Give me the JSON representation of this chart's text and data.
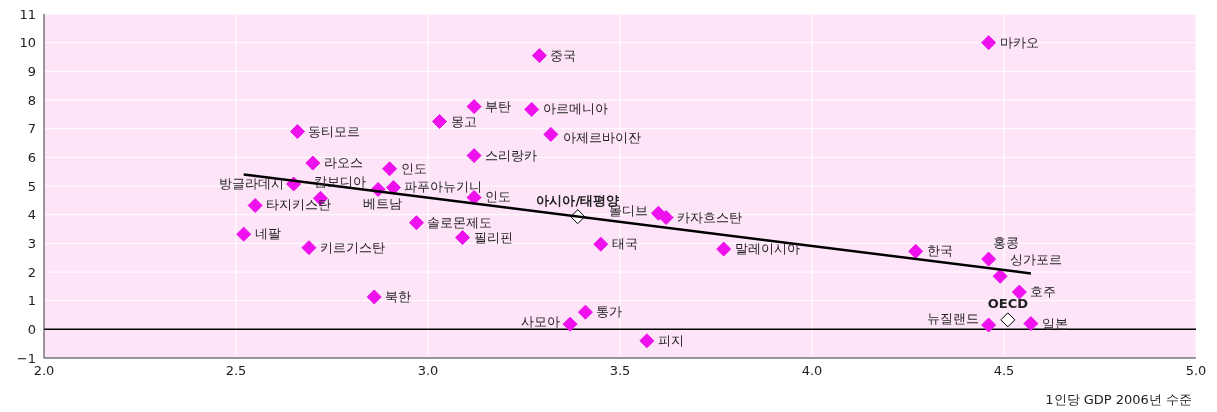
{
  "chart_data": {
    "type": "scatter",
    "xlabel": "1인당 GDP 2006년 수준",
    "marker": "diamond",
    "grid": true,
    "legend": false,
    "xlim": [
      2,
      5
    ],
    "xticks": [
      {
        "value": 2,
        "label": "2.0"
      },
      {
        "value": 2.5,
        "label": "2.5"
      },
      {
        "value": 3,
        "label": "3.0"
      },
      {
        "value": 3.5,
        "label": "3.5"
      },
      {
        "value": 4,
        "label": "4.0"
      },
      {
        "value": 4.5,
        "label": "4.5"
      },
      {
        "value": 5,
        "label": "5.0"
      }
    ],
    "ylim": [
      -1,
      11
    ],
    "yticks": [
      {
        "value": -1,
        "label": "−1"
      },
      0,
      1,
      2,
      3,
      4,
      5,
      6,
      7,
      8,
      9,
      10,
      11
    ],
    "ref_lines": [
      {
        "axis": "y",
        "value": 0,
        "color": "#000000"
      }
    ],
    "series": [
      {
        "color": "#ee11ee",
        "x": [
          3.29,
          4.46,
          3.12,
          3.27,
          3.03,
          3.32,
          2.66,
          3.12,
          2.7,
          2.9,
          2.65,
          2.72,
          2.55,
          2.87,
          2.91,
          3.12,
          2.97,
          2.52,
          3.09,
          2.69,
          3.45,
          3.6,
          3.62,
          3.77,
          4.27,
          4.46,
          4.49,
          4.54,
          4.46,
          4.57,
          2.86,
          3.41,
          3.37,
          3.57
        ],
        "values": [
          9.55,
          10,
          7.77,
          7.67,
          7.25,
          6.8,
          6.9,
          6.06,
          5.8,
          5.6,
          5.07,
          4.57,
          4.32,
          4.88,
          4.95,
          4.6,
          3.72,
          3.32,
          3.2,
          2.85,
          2.97,
          4.05,
          3.9,
          2.8,
          2.72,
          2.45,
          1.85,
          1.3,
          0.15,
          0.2,
          1.13,
          0.6,
          0.18,
          -0.4
        ]
      },
      {
        "color": "#000000",
        "x": [
          3.39,
          4.51
        ],
        "values": [
          3.93,
          0.33
        ]
      },
      {
        "type": "line",
        "marker": "none",
        "color": "#000000",
        "x": [
          2.52,
          4.57
        ],
        "values": [
          5.4,
          1.95
        ]
      }
    ],
    "annotations": [
      {
        "text": "중국",
        "x": 3.29,
        "y": 9.55
      },
      {
        "text": "마카오",
        "x": 4.46,
        "y": 10
      },
      {
        "text": "부탄",
        "x": 3.12,
        "y": 7.77
      },
      {
        "text": "아르메니아",
        "x": 3.27,
        "y": 7.67
      },
      {
        "text": "몽고",
        "x": 3.03,
        "y": 7.25
      },
      {
        "text": "아제르바이잔",
        "x": 3.32,
        "y": 6.8
      },
      {
        "text": "동티모르",
        "x": 2.66,
        "y": 6.9
      },
      {
        "text": "스리랑카",
        "x": 3.12,
        "y": 6.06
      },
      {
        "text": "라오스",
        "x": 2.7,
        "y": 5.8
      },
      {
        "text": "인도",
        "x": 2.9,
        "y": 5.6
      },
      {
        "text": "방글라데시",
        "x": 2.65,
        "y": 5.07
      },
      {
        "text": "캄보디아",
        "x": 2.72,
        "y": 4.57
      },
      {
        "text": "타지키스탄",
        "x": 2.55,
        "y": 4.32
      },
      {
        "text": "베트남",
        "x": 2.87,
        "y": 4.88
      },
      {
        "text": "파푸아뉴기니",
        "x": 2.91,
        "y": 4.95
      },
      {
        "text": "인도",
        "x": 3.12,
        "y": 4.6
      },
      {
        "text": "솔로몬제도",
        "x": 2.97,
        "y": 3.72
      },
      {
        "text": "네팔",
        "x": 2.52,
        "y": 3.32
      },
      {
        "text": "필리핀",
        "x": 3.09,
        "y": 3.2
      },
      {
        "text": "키르기스탄",
        "x": 2.69,
        "y": 2.85
      },
      {
        "text": "태국",
        "x": 3.45,
        "y": 2.97
      },
      {
        "text": "몰디브",
        "x": 3.6,
        "y": 4.05
      },
      {
        "text": "카자흐스탄",
        "x": 3.62,
        "y": 3.9
      },
      {
        "text": "말레이시아",
        "x": 3.77,
        "y": 2.8
      },
      {
        "text": "한국",
        "x": 4.27,
        "y": 2.72
      },
      {
        "text": "홍콩",
        "x": 4.46,
        "y": 2.45
      },
      {
        "text": "싱가포르",
        "x": 4.49,
        "y": 1.85
      },
      {
        "text": "호주",
        "x": 4.54,
        "y": 1.3
      },
      {
        "text": "뉴질랜드",
        "x": 4.46,
        "y": 0.15
      },
      {
        "text": "일본",
        "x": 4.57,
        "y": 0.2
      },
      {
        "text": "북한",
        "x": 2.86,
        "y": 1.13
      },
      {
        "text": "통가",
        "x": 3.41,
        "y": 0.6
      },
      {
        "text": "사모아",
        "x": 3.37,
        "y": 0.18
      },
      {
        "text": "피지",
        "x": 3.57,
        "y": -0.4
      },
      {
        "text": "아시아/태평양",
        "x": 3.39,
        "y": 3.93
      },
      {
        "text": "OECD",
        "x": 4.51,
        "y": 0.33
      }
    ]
  }
}
